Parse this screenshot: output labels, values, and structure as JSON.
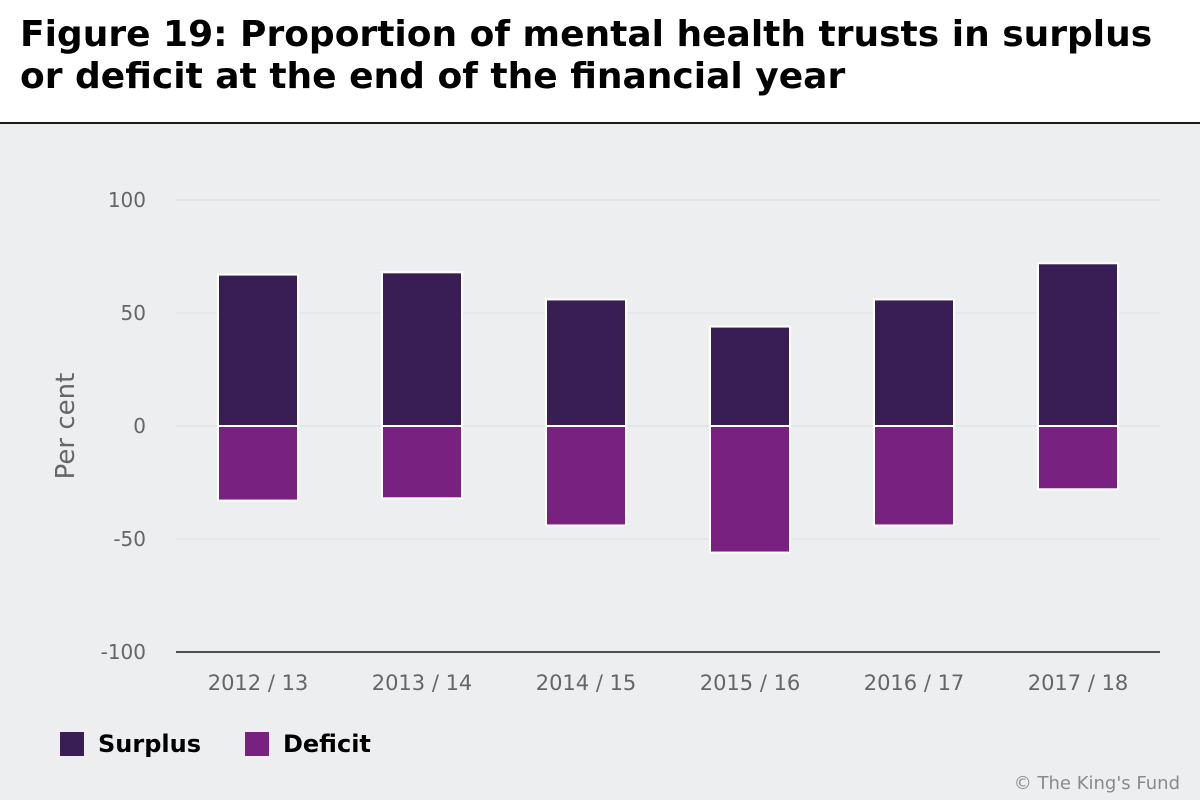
{
  "title": "Figure 19: Proportion of mental health trusts in surplus or deficit at the end of the financial year",
  "credit": "© The King's Fund",
  "colors": {
    "surplus": "#381e55",
    "deficit": "#782180",
    "background": "#edeef0",
    "grid": "#e2e3e6",
    "axis_text": "#666666"
  },
  "legend": {
    "position": "bottom-left",
    "items": [
      {
        "label": "Surplus",
        "color": "#381e55"
      },
      {
        "label": "Deficit",
        "color": "#782180"
      }
    ]
  },
  "chart_data": {
    "type": "bar",
    "stacked": true,
    "title": "Figure 19: Proportion of mental health trusts in surplus or deficit at the end of the financial year",
    "xlabel": "",
    "ylabel": "Per cent",
    "ylim": [
      -100,
      100
    ],
    "yticks": [
      100,
      50,
      0,
      -50,
      -100
    ],
    "grid": true,
    "categories": [
      "2012 / 13",
      "2013 / 14",
      "2014 / 15",
      "2015 / 16",
      "2016 / 17",
      "2017 / 18"
    ],
    "series": [
      {
        "name": "Surplus",
        "values": [
          67,
          68,
          56,
          44,
          56,
          72
        ]
      },
      {
        "name": "Deficit",
        "values": [
          -33,
          -32,
          -44,
          -56,
          -44,
          -28
        ]
      }
    ]
  }
}
